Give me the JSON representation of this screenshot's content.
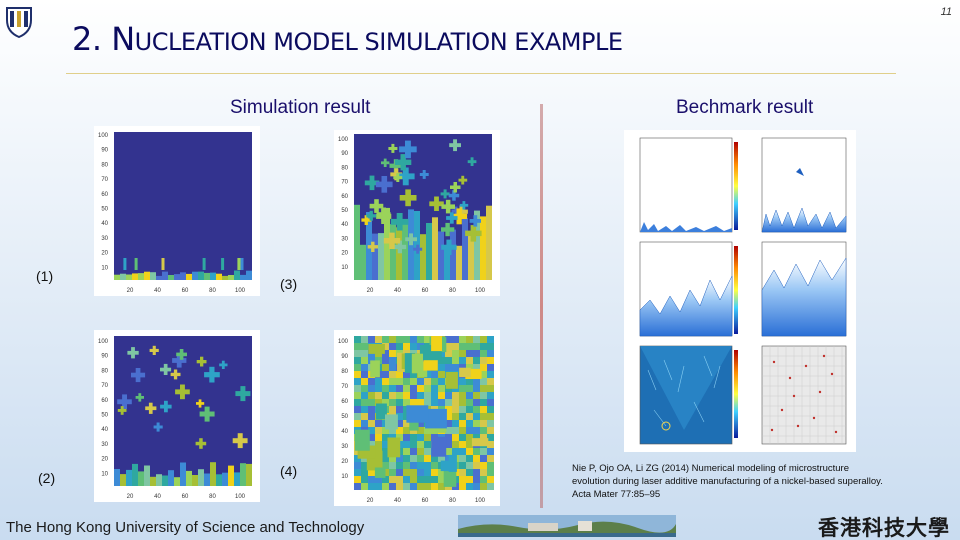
{
  "slide": {
    "page_number": "11",
    "title_big_1": "2. N",
    "title_small_1": "UCLEATION MODEL SIMULATION EXAMPLE",
    "left_heading": "Simulation result",
    "right_heading": "Bechmark result"
  },
  "labels": {
    "p1": "(1)",
    "p2": "(2)",
    "p3": "(3)",
    "p4": "(4)"
  },
  "axes": {
    "y_ticks": [
      "100",
      "90",
      "80",
      "70",
      "60",
      "50",
      "40",
      "30",
      "20",
      "10"
    ],
    "x_ticks": [
      "20",
      "40",
      "60",
      "80",
      "100"
    ]
  },
  "citation": {
    "line1": "Nie P, Ojo OA, Li ZG (2014) Numerical modeling of microstructure",
    "line2": "evolution during laser additive manufacturing of a nickel-based superalloy.",
    "line3": "Acta Mater 77:85–95"
  },
  "footer": {
    "university": "The Hong Kong University of Science and Technology",
    "chinese_name": "香港科技大學"
  },
  "colors": {
    "plot_background": "#33338f",
    "grain_palette": [
      "#2ea3c7",
      "#3d8bd6",
      "#5fbf76",
      "#f0d21a",
      "#a6bf35",
      "#2fa8a0",
      "#7fc6a3",
      "#d6c84a",
      "#4a6fcf",
      "#9bd35a"
    ],
    "title": "#0b0b5e"
  }
}
